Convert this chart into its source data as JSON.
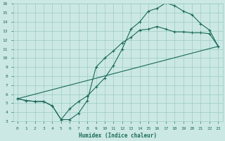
{
  "xlabel": "Humidex (Indice chaleur)",
  "bg_color": "#cce8e4",
  "grid_color": "#99ccc4",
  "line_color": "#1a6b5a",
  "xlim": [
    -0.5,
    23.5
  ],
  "ylim": [
    3,
    16
  ],
  "xtick_labels": [
    "0",
    "1",
    "2",
    "3",
    "4",
    "5",
    "6",
    "7",
    "8",
    "9",
    "10",
    "11",
    "12",
    "13",
    "14",
    "15",
    "16",
    "17",
    "18",
    "19",
    "20",
    "21",
    "22",
    "23"
  ],
  "xtick_vals": [
    0,
    1,
    2,
    3,
    4,
    5,
    6,
    7,
    8,
    9,
    10,
    11,
    12,
    13,
    14,
    15,
    16,
    17,
    18,
    19,
    20,
    21,
    22,
    23
  ],
  "ytick_vals": [
    3,
    4,
    5,
    6,
    7,
    8,
    9,
    10,
    11,
    12,
    13,
    14,
    15,
    16
  ],
  "line1_x": [
    0,
    1,
    2,
    3,
    4,
    5,
    6,
    7,
    8,
    9,
    10,
    11,
    12,
    13,
    14,
    15,
    16,
    17,
    18,
    19,
    20,
    21,
    22,
    23
  ],
  "line1_y": [
    5.5,
    5.3,
    5.2,
    5.2,
    4.7,
    3.2,
    4.4,
    5.2,
    5.8,
    6.8,
    7.8,
    9.2,
    11.0,
    13.2,
    14.0,
    15.2,
    15.5,
    16.1,
    15.8,
    15.2,
    14.8,
    13.8,
    13.1,
    11.3
  ],
  "line2_x": [
    0,
    1,
    2,
    3,
    4,
    5,
    6,
    7,
    8,
    9,
    10,
    11,
    12,
    13,
    14,
    15,
    16,
    17,
    18,
    19,
    20,
    21,
    22,
    23
  ],
  "line2_y": [
    5.5,
    5.3,
    5.2,
    5.2,
    4.7,
    3.2,
    3.2,
    3.9,
    5.3,
    9.0,
    10.0,
    10.8,
    11.7,
    12.3,
    13.1,
    13.2,
    13.5,
    13.2,
    12.9,
    12.9,
    12.8,
    12.8,
    12.7,
    11.3
  ],
  "line3_x": [
    0,
    23
  ],
  "line3_y": [
    5.5,
    11.3
  ]
}
